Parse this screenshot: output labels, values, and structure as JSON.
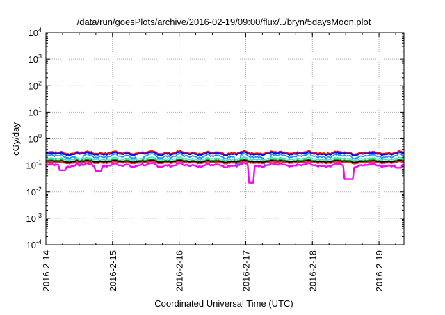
{
  "chart_data": {
    "type": "line",
    "title": "/data/run/goesPlots/archive/2016-02-19/09:00/flux/../bryn/5daysMoon.plot",
    "xlabel": "Coordinated Universal Time (UTC)",
    "ylabel": "cGy/day",
    "yscale": "log",
    "ylim": [
      0.0001,
      10000
    ],
    "y_ticks": [
      {
        "value": 0.0001,
        "mantissa": "10",
        "exp": "-4"
      },
      {
        "value": 0.001,
        "mantissa": "10",
        "exp": "-3"
      },
      {
        "value": 0.01,
        "mantissa": "10",
        "exp": "-2"
      },
      {
        "value": 0.1,
        "mantissa": "10",
        "exp": "-1"
      },
      {
        "value": 1,
        "mantissa": "10",
        "exp": "0"
      },
      {
        "value": 10,
        "mantissa": "10",
        "exp": "1"
      },
      {
        "value": 100,
        "mantissa": "10",
        "exp": "2"
      },
      {
        "value": 1000,
        "mantissa": "10",
        "exp": "3"
      },
      {
        "value": 10000,
        "mantissa": "10",
        "exp": "4"
      }
    ],
    "xlim": [
      "2016-02-14 00:00",
      "2016-02-19 09:00"
    ],
    "x_ticks": [
      "2016-2-14",
      "2016-2-15",
      "2016-2-16",
      "2016-2-17",
      "2016-2-18",
      "2016-2-19"
    ],
    "grid": true,
    "legend": "none",
    "series": [
      {
        "color": "#ff0000",
        "base": 0.3,
        "jitter": 0.18,
        "dips": []
      },
      {
        "color": "#0000ff",
        "base": 0.27,
        "jitter": 0.18,
        "dips": []
      },
      {
        "color": "#1e90ff",
        "base": 0.22,
        "jitter": 0.25,
        "dips": [
          [
            "2016-02-14 12:00",
            0.11
          ],
          [
            "2016-02-15 10:00",
            0.12
          ],
          [
            "2016-02-16 21:00",
            0.11
          ],
          [
            "2016-02-17 07:30",
            0.1
          ]
        ]
      },
      {
        "color": "#40e0d0",
        "base": 0.175,
        "jitter": 0.15,
        "dips": []
      },
      {
        "color": "#00c000",
        "base": 0.15,
        "jitter": 0.15,
        "dips": []
      },
      {
        "color": "#000000",
        "base": 0.14,
        "jitter": 0.12,
        "dips": []
      },
      {
        "color": "#ff2020",
        "base": 0.125,
        "jitter": 0.12,
        "dips": []
      },
      {
        "color": "#ff00ff",
        "base": 0.1,
        "jitter": 0.22,
        "dips": [
          [
            "2016-02-14 06:00",
            0.065
          ],
          [
            "2016-02-14 19:00",
            0.06
          ],
          [
            "2016-02-17 02:00",
            0.022
          ],
          [
            "2016-02-18 12:30",
            0.03
          ],
          [
            "2016-02-18 13:30",
            0.03
          ],
          [
            "2016-02-19 07:00",
            0.08
          ]
        ]
      }
    ]
  }
}
